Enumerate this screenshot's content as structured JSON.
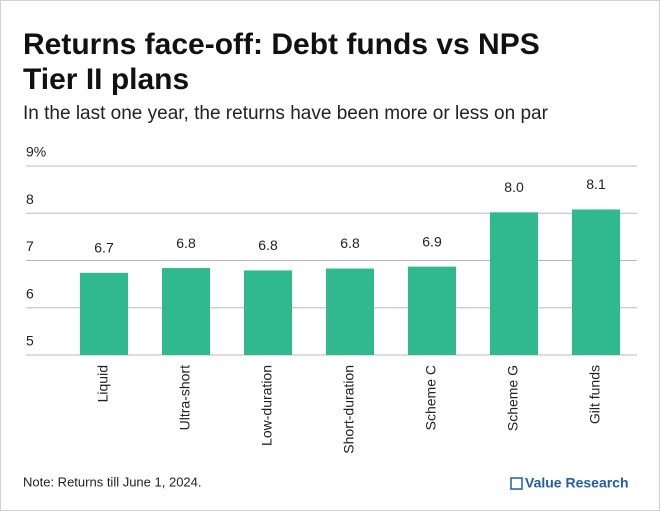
{
  "chart_data": {
    "type": "bar",
    "title_lines": [
      "Returns face-off: Debt funds vs NPS",
      "Tier II plans"
    ],
    "subtitle": "In the last one year, the returns have been more or less on par",
    "categories": [
      "Liquid",
      "Ultra-short",
      "Low-duration",
      "Short-duration",
      "Scheme C",
      "Scheme G",
      "Gilt funds"
    ],
    "values": [
      6.74,
      6.84,
      6.79,
      6.83,
      6.87,
      8.02,
      8.08
    ],
    "value_labels": [
      "6.7",
      "6.8",
      "6.8",
      "6.8",
      "6.9",
      "8.0",
      "8.1"
    ],
    "color": "#2fb98c",
    "ylim": [
      5,
      9
    ],
    "yticks": [
      5,
      6,
      7,
      8,
      {
        "value": 9,
        "label": "9%"
      }
    ],
    "grid": true,
    "note": "Note: Returns till June 1, 2024.",
    "source": "Value Research"
  }
}
